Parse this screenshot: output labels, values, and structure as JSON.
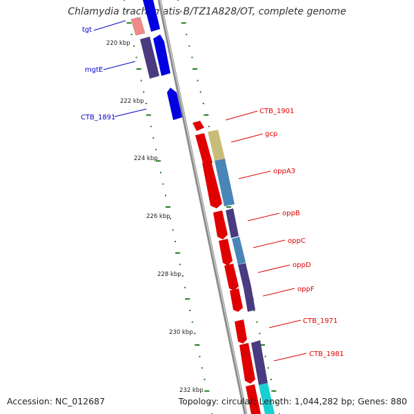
{
  "title": "Chlamydia trachomatis B/TZ1A828/OT, complete genome",
  "footer": {
    "accession": "Accession: NC_012687",
    "topology": "Topology: circular; Length: 1,044,282 bp; Genes: 880"
  },
  "colors": {
    "backbone": "#8a8a8a",
    "left_labels": "#0000cc",
    "right_labels": "#dd0000",
    "ticks": "#1a7a1a"
  },
  "kbp_markers": [
    "220 kbp",
    "222 kbp",
    "224 kbp",
    "226 kbp",
    "228 kbp",
    "230 kbp",
    "232 kbp"
  ],
  "left_genes": [
    "tgt",
    "mgtE",
    "CTB_1891"
  ],
  "right_genes": [
    "CTB_1901",
    "gcp",
    "oppA3",
    "oppB",
    "oppC",
    "oppD",
    "oppF",
    "CTB_1971",
    "CTB_1981"
  ]
}
